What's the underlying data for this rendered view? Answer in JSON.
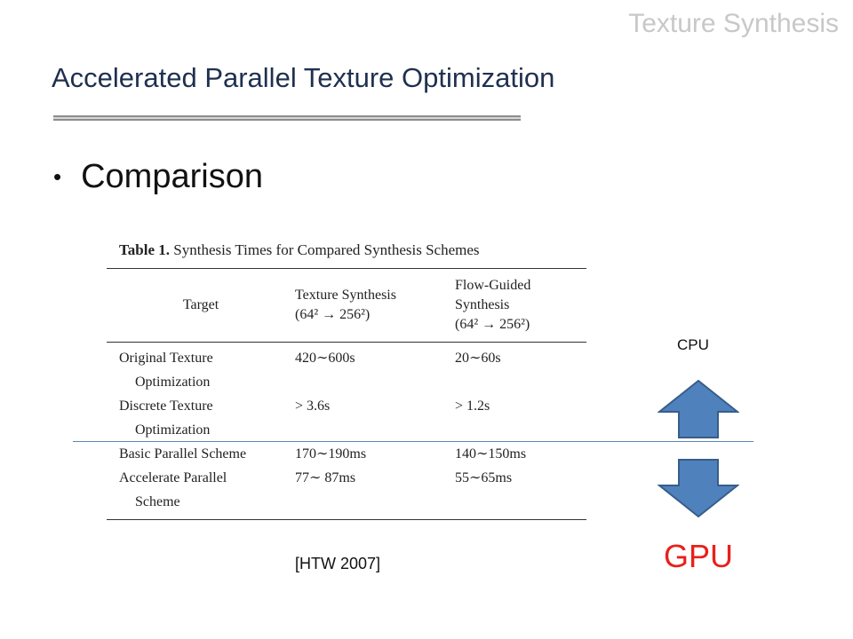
{
  "header": {
    "corner_title": "Texture Synthesis",
    "slide_title": "Accelerated Parallel Texture Optimization"
  },
  "bullet": {
    "text": "Comparison"
  },
  "table": {
    "caption_label": "Table 1.",
    "caption_text": "Synthesis Times for Compared Synthesis Schemes",
    "headers": {
      "target": "Target",
      "col2_line1": "Texture Synthesis",
      "col2_line2": "(64² → 256²)",
      "col3_line1": "Flow-Guided",
      "col3_line2": "Synthesis",
      "col3_line3": "(64² → 256²)"
    },
    "rows": [
      {
        "name_line1": "Original Texture",
        "name_line2": "Optimization",
        "texture": "420∼600s",
        "flow": "20∼60s"
      },
      {
        "name_line1": "Discrete Texture",
        "name_line2": "Optimization",
        "texture": "> 3.6s",
        "flow": "> 1.2s"
      },
      {
        "name_line1": "Basic Parallel Scheme",
        "name_line2": "",
        "texture": "170∼190ms",
        "flow": "140∼150ms"
      },
      {
        "name_line1": "Accelerate Parallel",
        "name_line2": "Scheme",
        "texture": "77∼ 87ms",
        "flow": "55∼65ms"
      }
    ]
  },
  "labels": {
    "cpu": "CPU",
    "gpu": "GPU",
    "citation": "[HTW 2007]"
  },
  "colors": {
    "arrow_fill": "#4f81bd",
    "arrow_stroke": "#385d8a",
    "gpu": "#e8201a",
    "divider": "#5b87b8"
  }
}
